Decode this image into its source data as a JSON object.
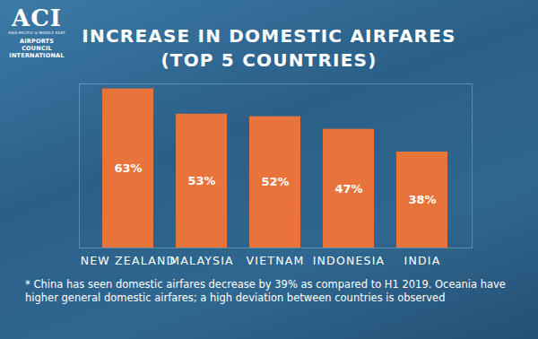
{
  "logo": {
    "mark": "ACI",
    "region": "ASIA-PACIFIC & MIDDLE EAST",
    "name": "AIRPORTS COUNCIL INTERNATIONAL"
  },
  "chart_data": {
    "type": "bar",
    "title": "INCREASE IN DOMESTIC AIRFARES",
    "subtitle": "(TOP 5 COUNTRIES)",
    "categories": [
      "NEW ZEALAND",
      "MALAYSIA",
      "VIETNAM",
      "INDONESIA",
      "INDIA"
    ],
    "values": [
      63,
      53,
      52,
      47,
      38
    ],
    "value_labels": [
      "63%",
      "53%",
      "52%",
      "47%",
      "38%"
    ],
    "data_labels": true,
    "color": "#e8743b",
    "ylim": [
      0,
      65
    ],
    "yticks": [],
    "tick_labels": "x",
    "grid": false,
    "footnote": "* China has seen domestic airfares decrease by 39% as compared to H1 2019. Oceania have higher general domestic airfares; a high deviation between countries is observed"
  }
}
